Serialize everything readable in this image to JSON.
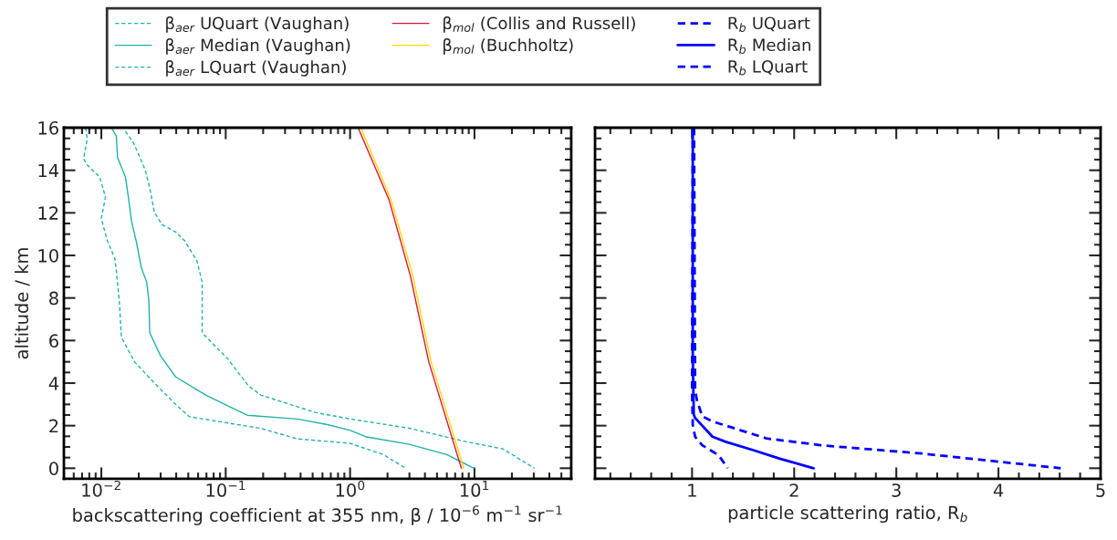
{
  "chart_data": [
    {
      "type": "line",
      "log": "x",
      "xlabel": "backscattering coefficient at 355 nm, β / 10$^{−6}$ m$^{−1}$ sr$^{−1}$",
      "ylabel": "altitude / km",
      "xlim": [
        0.005,
        60
      ],
      "ylim": [
        -0.5,
        16
      ],
      "xticks": [
        {
          "value": 0.01,
          "label": "10$^{−2}$"
        },
        {
          "value": 0.1,
          "label": "10$^{−1}$"
        },
        {
          "value": 1,
          "label": "10$^{0}$"
        },
        {
          "value": 10,
          "label": "10$^{1}$"
        }
      ],
      "yticks": [
        0,
        2,
        4,
        6,
        8,
        10,
        12,
        14,
        16
      ],
      "legend": "top",
      "grid": false,
      "marker": "none",
      "series": [
        {
          "name": "β$_{aer}$ UQuart (Vaughan)",
          "color": "#20b2aa",
          "line_style": "dashed",
          "x": [
            0.0156,
            0.018,
            0.0225,
            0.0245,
            0.0267,
            0.0307,
            0.0396,
            0.047,
            0.0589,
            0.0647,
            0.0647,
            0.0827,
            0.1035,
            0.153,
            0.193,
            0.533,
            1.14,
            3.0,
            8.4,
            16.9,
            30.4
          ],
          "values": [
            15.83,
            15.33,
            14.03,
            13.17,
            12.03,
            11.45,
            11.1,
            10.67,
            9.73,
            8.73,
            6.37,
            5.72,
            5.15,
            3.86,
            3.43,
            2.61,
            2.26,
            1.88,
            1.26,
            0.91,
            0
          ]
        },
        {
          "name": "β$_{aer}$ Median (Vaughan)",
          "color": "#20b2aa",
          "line_style": "solid",
          "x": [
            0.0121,
            0.0132,
            0.0135,
            0.0156,
            0.0165,
            0.0175,
            0.0192,
            0.0209,
            0.0232,
            0.0241,
            0.0245,
            0.0299,
            0.0396,
            0.0697,
            0.149,
            0.377,
            0.658,
            0.995,
            1.36,
            3.0,
            6.0,
            9.9
          ],
          "values": [
            16,
            15.6,
            14.6,
            13.7,
            12.74,
            11.6,
            10.6,
            9.45,
            8.73,
            7.87,
            6.37,
            5.29,
            4.29,
            3.43,
            2.49,
            2.31,
            2.05,
            1.79,
            1.47,
            1.12,
            0.64,
            0
          ]
        },
        {
          "name": "β$_{aer}$ LQuart (Vaughan)",
          "color": "#20b2aa",
          "line_style": "dashed",
          "x": [
            0.0075,
            0.0077,
            0.0072,
            0.0077,
            0.0097,
            0.0108,
            0.01,
            0.0111,
            0.0128,
            0.0132,
            0.014,
            0.0145,
            0.0185,
            0.0267,
            0.0396,
            0.051,
            0.189,
            0.377,
            1.0,
            1.85,
            2.8
          ],
          "values": [
            16,
            15.47,
            14.54,
            14.25,
            13.68,
            12.74,
            11.74,
            10.74,
            9.88,
            9.3,
            7.73,
            6.15,
            5.0,
            4.0,
            3.0,
            2.42,
            1.88,
            1.38,
            1.17,
            0.64,
            0
          ]
        },
        {
          "name": "β$_{mol}$ (Collis and Russell)",
          "color": "#dc143c",
          "line_style": "solid",
          "x": [
            1.16,
            2.06,
            3.06,
            4.29,
            7.85
          ],
          "values": [
            16,
            12.6,
            9.02,
            5.0,
            0
          ]
        },
        {
          "name": "β$_{mol}$ (Buchholtz)",
          "color": "#ffd700",
          "line_style": "solid",
          "x": [
            1.22,
            2.14,
            3.2,
            4.48,
            8.2
          ],
          "values": [
            16,
            12.6,
            9.02,
            5.0,
            0
          ]
        }
      ]
    },
    {
      "type": "line",
      "xlabel": "particle scattering ratio, R$_{b}$",
      "xlim": [
        0.05,
        5
      ],
      "ylim": [
        -0.5,
        16
      ],
      "xticks": [
        1,
        2,
        3,
        4,
        5
      ],
      "yticks": [
        0,
        2,
        4,
        6,
        8,
        10,
        12,
        14,
        16
      ],
      "tick_labels": "x",
      "legend": "top",
      "grid": false,
      "marker": "none",
      "series": [
        {
          "name": "R$_{b}$ UQuart",
          "color": "#0000ff",
          "line_style": "dashed",
          "x": [
            1.02,
            1.03,
            1.05,
            1.1,
            1.2,
            1.73,
            2.26,
            3.25,
            4.61
          ],
          "values": [
            16,
            3.64,
            3.16,
            2.44,
            2.2,
            1.4,
            1.08,
            0.69,
            0
          ]
        },
        {
          "name": "R$_{b}$ Median",
          "color": "#0000ff",
          "line_style": "solid",
          "x": [
            1.007,
            1.007,
            1.017,
            1.03,
            1.2,
            1.33,
            1.6,
            1.86,
            2.19
          ],
          "values": [
            16,
            5.23,
            2.52,
            2.36,
            1.48,
            1.24,
            0.85,
            0.45,
            0
          ]
        },
        {
          "name": "R$_{b}$ LQuart",
          "color": "#0000ff",
          "line_style": "dashed",
          "x": [
            1.007,
            1.0,
            1.007,
            1.03,
            1.1,
            1.26,
            1.35
          ],
          "values": [
            16,
            3.64,
            2.04,
            1.48,
            1.08,
            0.61,
            0
          ]
        }
      ]
    }
  ]
}
